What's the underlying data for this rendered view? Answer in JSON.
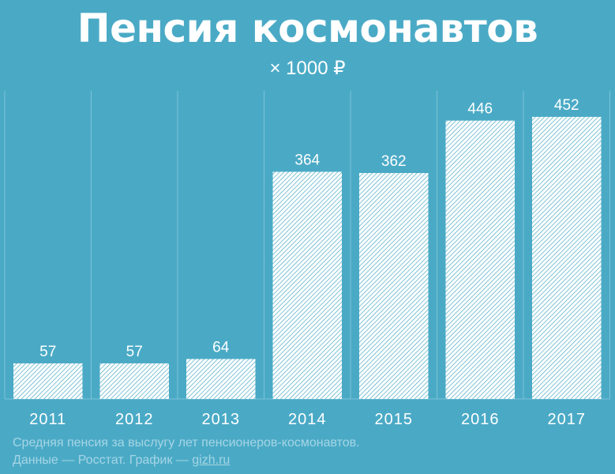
{
  "title": "Пенсия космонавтов",
  "subtitle": "× 1000 ₽",
  "chart_data": {
    "type": "bar",
    "categories": [
      "2011",
      "2012",
      "2013",
      "2014",
      "2015",
      "2016",
      "2017"
    ],
    "values": [
      57,
      57,
      64,
      364,
      362,
      446,
      452
    ],
    "title": "Пенсия космонавтов",
    "subtitle": "× 1000 ₽",
    "xlabel": "",
    "ylabel": "",
    "ylim": [
      0,
      500
    ],
    "grid": "vertical separators",
    "legend": "none"
  },
  "caption": {
    "line1": "Средняя пенсия за выслугу лет пенсионеров-космонавтов.",
    "line2_prefix": "Данные — Росстат. График — ",
    "line2_link": "gizh.ru"
  },
  "colors": {
    "background": "#4aaac6",
    "bar_fill": "#ffffff",
    "bar_hatch": "#4aaac6",
    "text": "#ffffff",
    "caption": "#a5d5e5",
    "gridline": "#7cc3d8"
  }
}
